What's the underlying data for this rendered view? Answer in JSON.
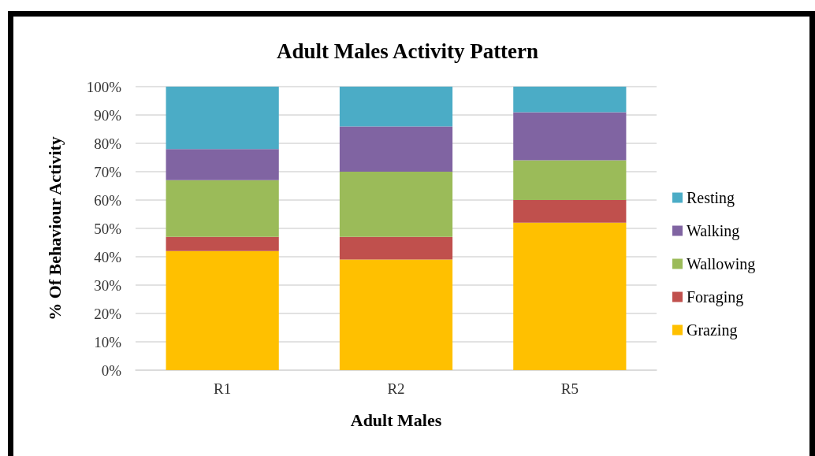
{
  "chart_data": {
    "type": "bar",
    "title": "Adult Males Activity Pattern",
    "xlabel": "Adult Males",
    "ylabel": "% Of Behaviour Activity",
    "categories": [
      "R1",
      "R2",
      "R5"
    ],
    "series": [
      {
        "name": "Grazing",
        "color": "#ffc000",
        "values": [
          42,
          39,
          52
        ]
      },
      {
        "name": "Foraging",
        "color": "#c0504d",
        "values": [
          5,
          8,
          8
        ]
      },
      {
        "name": "Wallowing",
        "color": "#9bbb59",
        "values": [
          20,
          23,
          14
        ]
      },
      {
        "name": "Walking",
        "color": "#8064a2",
        "values": [
          11,
          16,
          17
        ]
      },
      {
        "name": "Resting",
        "color": "#4bacc6",
        "values": [
          22,
          14,
          9
        ]
      }
    ],
    "stacked": true,
    "ylim": [
      0,
      100
    ],
    "yticks": [
      {
        "value": 0,
        "label": "0%"
      },
      {
        "value": 10,
        "label": "10%"
      },
      {
        "value": 20,
        "label": "20%"
      },
      {
        "value": 30,
        "label": "30%"
      },
      {
        "value": 40,
        "label": "40%"
      },
      {
        "value": 50,
        "label": "50%"
      },
      {
        "value": 60,
        "label": "60%"
      },
      {
        "value": 70,
        "label": "70%"
      },
      {
        "value": 80,
        "label": "80%"
      },
      {
        "value": 90,
        "label": "90%"
      },
      {
        "value": 100,
        "label": "100%"
      }
    ],
    "grid": "y",
    "legend": "right"
  }
}
